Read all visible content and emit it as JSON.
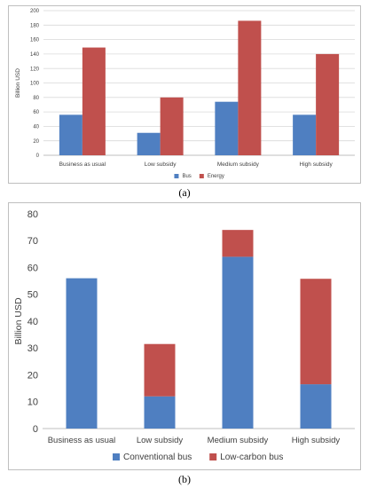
{
  "panel_labels": {
    "a": "(a)",
    "b": "(b)"
  },
  "colors": {
    "blue": "#4f7fc1",
    "red": "#c0504d",
    "grid": "#d9d9d9",
    "axis_text": "#595959"
  },
  "chart_data": [
    {
      "id": "a",
      "type": "bar",
      "categories": [
        "Business as usual",
        "Low subsidy",
        "Medium subsidy",
        "High subsidy"
      ],
      "series": [
        {
          "name": "Bus",
          "color": "#4f7fc1",
          "values": [
            56,
            31,
            74,
            56
          ]
        },
        {
          "name": "Energy",
          "color": "#c0504d",
          "values": [
            149,
            80,
            186,
            140
          ]
        }
      ],
      "ylabel": "Billion USD",
      "ylim": [
        0,
        200
      ],
      "yticks": [
        0,
        20,
        40,
        60,
        80,
        100,
        120,
        140,
        160,
        180,
        200
      ],
      "grid": true,
      "legend": "bottom"
    },
    {
      "id": "b",
      "type": "bar",
      "stacked": true,
      "categories": [
        "Business as usual",
        "Low subsidy",
        "Medium subsidy",
        "High subsidy"
      ],
      "series": [
        {
          "name": "Conventional bus",
          "color": "#4f7fc1",
          "values": [
            56,
            12,
            64,
            16.5
          ]
        },
        {
          "name": "Low-carbon bus",
          "color": "#c0504d",
          "values": [
            0,
            19.5,
            10,
            39.3
          ]
        }
      ],
      "ylabel": "Billion USD",
      "ylim": [
        0,
        80
      ],
      "yticks": [
        0,
        10,
        20,
        30,
        40,
        50,
        60,
        70,
        80
      ],
      "grid": false,
      "legend": "bottom"
    }
  ]
}
